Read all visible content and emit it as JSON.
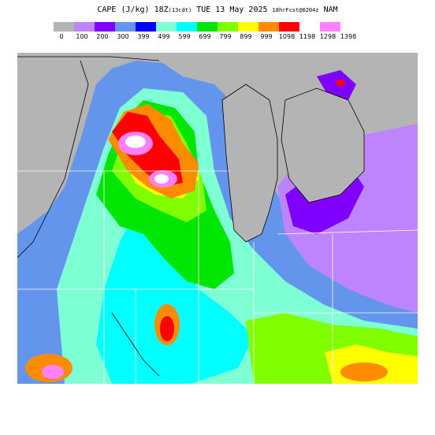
{
  "title": {
    "main": "CAPE (J/kg) 18Z",
    "local": "(13cdt)",
    "date": "TUE 13 May 2025",
    "forecast": "18hrFcst@0204z",
    "model": "NAM"
  },
  "legend": {
    "colors": [
      "#b4b4b4",
      "#be84ff",
      "#7f00ff",
      "#6495ed",
      "#0000ff",
      "#7fffd4",
      "#00ffff",
      "#00e600",
      "#7fff00",
      "#ffff00",
      "#ff8c00",
      "#ff0000",
      "#ffffff",
      "#ff80ff"
    ],
    "ticks": [
      "0",
      "100",
      "200",
      "300",
      "399",
      "499",
      "599",
      "699",
      "799",
      "899",
      "999",
      "1098",
      "1198",
      "1298",
      "1398"
    ]
  },
  "palette": {
    "gray": "#b4b4b4",
    "lightpurple": "#be84ff",
    "purple": "#7f00ff",
    "blue": "#6495ed",
    "navy": "#0000ff",
    "aqua": "#7fffd4",
    "cyan": "#00ffff",
    "green": "#00e600",
    "lime": "#7fff00",
    "yellow": "#ffff00",
    "orange": "#ff8c00",
    "red": "#ff0000",
    "white": "#ffffff",
    "pink": "#ff80ff"
  }
}
